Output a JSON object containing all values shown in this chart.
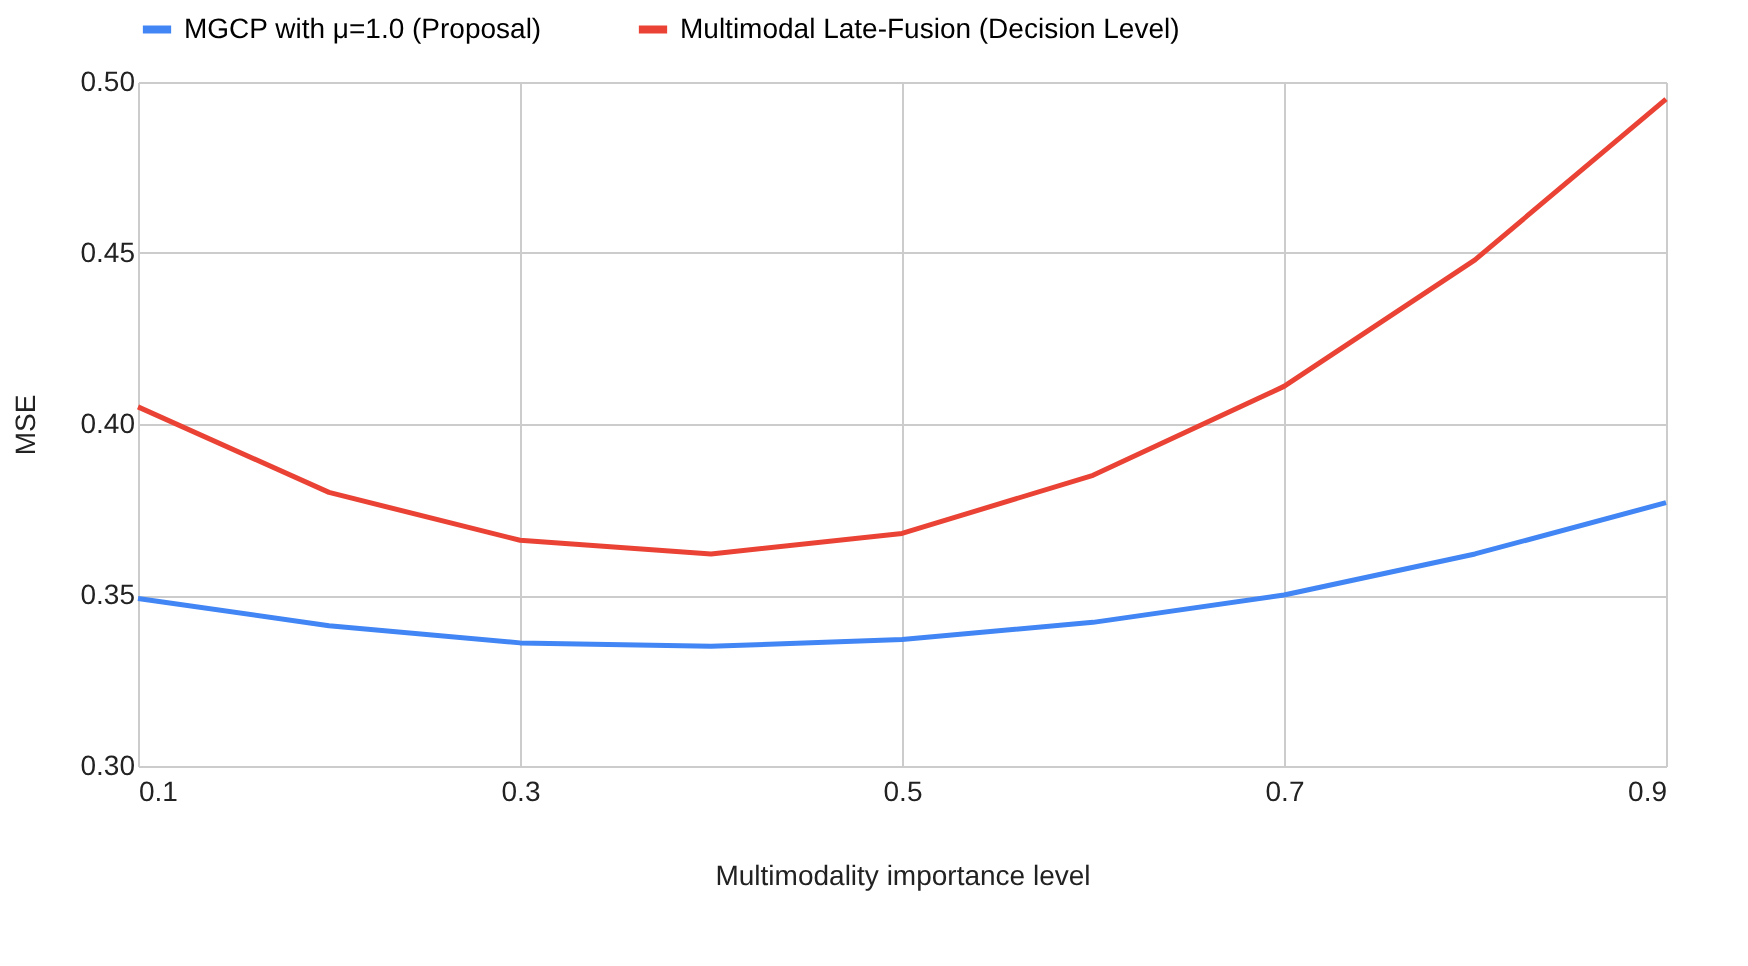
{
  "chart_data": {
    "type": "line",
    "xlabel": "Multimodality importance level",
    "ylabel": "MSE",
    "x": [
      0.1,
      0.2,
      0.3,
      0.4,
      0.5,
      0.6,
      0.7,
      0.8,
      0.9
    ],
    "series": [
      {
        "name": "MGCP with μ=1.0 (Proposal)",
        "color": "#4285f4",
        "values": [
          0.349,
          0.341,
          0.336,
          0.335,
          0.337,
          0.342,
          0.35,
          0.362,
          0.377
        ]
      },
      {
        "name": "Multimodal Late-Fusion (Decision Level)",
        "color": "#ea4335",
        "values": [
          0.405,
          0.38,
          0.366,
          0.362,
          0.368,
          0.385,
          0.411,
          0.448,
          0.495
        ]
      }
    ],
    "xlim": [
      0.1,
      0.9
    ],
    "xticks": [
      0.1,
      0.3,
      0.5,
      0.7,
      0.9
    ],
    "ylim": [
      0.3,
      0.5
    ],
    "yticks": [
      {
        "value": 0.3,
        "label": "0.30"
      },
      {
        "value": 0.35,
        "label": "0.35"
      },
      {
        "value": 0.4,
        "label": "0.40"
      },
      {
        "value": 0.45,
        "label": "0.45"
      },
      {
        "value": 0.5,
        "label": "0.50"
      }
    ],
    "grid": true,
    "legend": "top",
    "marker": "none",
    "line_style": "solid"
  }
}
